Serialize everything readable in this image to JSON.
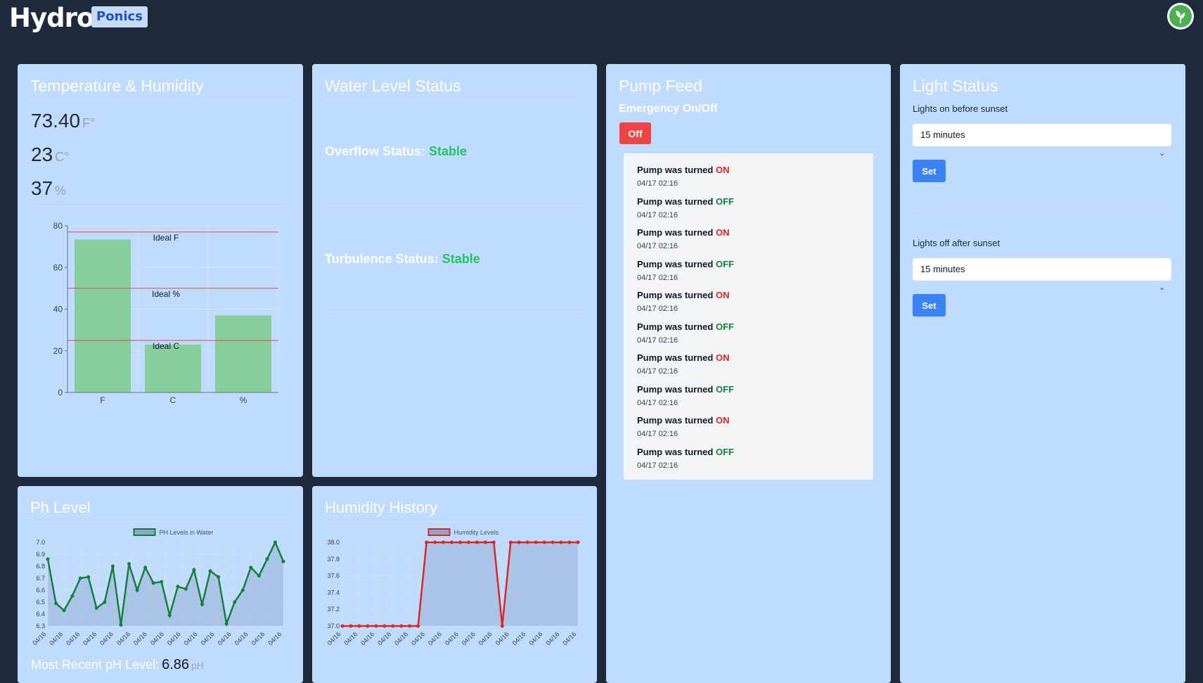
{
  "brand": {
    "title": "Hydro",
    "badge": "Ponics"
  },
  "avatar": {
    "icon": "leaf-icon"
  },
  "temperature_card": {
    "title": "Temperature & Humidity",
    "fahrenheit": {
      "value": "73.40",
      "unit": "F°"
    },
    "celsius": {
      "value": "23",
      "unit": "C°"
    },
    "humidity": {
      "value": "37",
      "unit": "%"
    }
  },
  "water_card": {
    "title": "Water Level Status",
    "overflow_label": "Overflow Status:",
    "overflow_value": "Stable",
    "turbulence_label": "Turbulence Status:",
    "turbulence_value": "Stable"
  },
  "pump_card": {
    "title": "Pump Feed",
    "emergency_label": "Emergency On/Off",
    "off_button": "Off",
    "log": [
      {
        "text": "Pump was turned",
        "state": "ON",
        "time": "04/17 02:16"
      },
      {
        "text": "Pump was turned",
        "state": "OFF",
        "time": "04/17 02:16"
      },
      {
        "text": "Pump was turned",
        "state": "ON",
        "time": "04/17 02:16"
      },
      {
        "text": "Pump was turned",
        "state": "OFF",
        "time": "04/17 02:16"
      },
      {
        "text": "Pump was turned",
        "state": "ON",
        "time": "04/17 02:16"
      },
      {
        "text": "Pump was turned",
        "state": "OFF",
        "time": "04/17 02:16"
      },
      {
        "text": "Pump was turned",
        "state": "ON",
        "time": "04/17 02:16"
      },
      {
        "text": "Pump was turned",
        "state": "OFF",
        "time": "04/17 02:16"
      },
      {
        "text": "Pump was turned",
        "state": "ON",
        "time": "04/17 02:16"
      },
      {
        "text": "Pump was turned",
        "state": "OFF",
        "time": "04/17 02:16"
      }
    ]
  },
  "light_card": {
    "title": "Light Status",
    "before_label": "Lights on before sunset",
    "before_value": "15 minutes",
    "after_label": "Lights off after sunset",
    "after_value": "15 minutes",
    "set_label": "Set"
  },
  "ph_card": {
    "title": "Ph Level",
    "recent_label": "Most Recent pH Level:",
    "recent_value": "6.86",
    "recent_unit": "pH"
  },
  "humidity_card": {
    "title": "Humidity History"
  },
  "colors": {
    "on": "#dc2626",
    "off": "#15803d",
    "status": "#22c55e",
    "danger": "#ef4444",
    "primary": "#3b82f6"
  },
  "chart_data": [
    {
      "type": "bar",
      "categories": [
        "F",
        "C",
        "%"
      ],
      "values": [
        73.4,
        23,
        37
      ],
      "ylim": [
        0,
        80
      ],
      "yticks": [
        0,
        20,
        40,
        60,
        80
      ],
      "reference_lines": [
        {
          "label": "Ideal F",
          "value": 77
        },
        {
          "label": "Ideal %",
          "value": 50
        },
        {
          "label": "Ideal C",
          "value": 25
        }
      ],
      "bar_color": "#86cf9c",
      "grid": true
    },
    {
      "type": "line",
      "series": [
        {
          "name": "PH Levels in Water",
          "values": [
            6.86,
            6.49,
            6.43,
            6.55,
            6.7,
            6.71,
            6.45,
            6.5,
            6.8,
            6.31,
            6.82,
            6.6,
            6.79,
            6.66,
            6.67,
            6.39,
            6.63,
            6.61,
            6.77,
            6.48,
            6.76,
            6.71,
            6.32,
            6.5,
            6.6,
            6.79,
            6.72,
            6.86,
            7.0,
            6.84
          ]
        }
      ],
      "x": [
        "04/16",
        "04/16",
        "04/16",
        "04/16",
        "04/16",
        "04/16",
        "04/16",
        "04/16",
        "04/16",
        "04/16",
        "04/16",
        "04/16",
        "04/16",
        "04/16",
        "04/16",
        "04/16",
        "04/16",
        "04/16",
        "04/16",
        "04/16",
        "04/16",
        "04/16",
        "04/16",
        "04/16",
        "04/16",
        "04/16",
        "04/16",
        "04/16",
        "04/16",
        "04/16"
      ],
      "x_tick_labels": [
        "04/16",
        "04/16",
        "04/16",
        "04/16",
        "04/16",
        "04/16",
        "04/16",
        "04/16",
        "04/16",
        "04/16",
        "04/16",
        "04/16",
        "04/16",
        "04/16",
        "04/16"
      ],
      "ylim": [
        6.3,
        7.0
      ],
      "yticks": [
        6.3,
        6.4,
        6.5,
        6.6,
        6.7,
        6.8,
        6.9,
        7.0
      ],
      "line_color": "#15803d",
      "legend": "top",
      "grid": true
    },
    {
      "type": "line",
      "series": [
        {
          "name": "Humidity Levels",
          "values": [
            37,
            37,
            37,
            37,
            37,
            37,
            37,
            37,
            37,
            37,
            38,
            38,
            38,
            38,
            38,
            38,
            38,
            38,
            38,
            37,
            38,
            38,
            38,
            38,
            38,
            38,
            38,
            38,
            38
          ]
        }
      ],
      "x": [
        "04/16",
        "04/16",
        "04/16",
        "04/16",
        "04/16",
        "04/16",
        "04/16",
        "04/16",
        "04/16",
        "04/16",
        "04/16",
        "04/16",
        "04/16",
        "04/16",
        "04/16",
        "04/16",
        "04/16",
        "04/16",
        "04/16",
        "04/16",
        "04/16",
        "04/16",
        "04/16",
        "04/16",
        "04/16",
        "04/16",
        "04/16",
        "04/16",
        "04/16"
      ],
      "x_tick_labels": [
        "04/16",
        "04/16",
        "04/16",
        "04/16",
        "04/16",
        "04/16",
        "04/16",
        "04/16",
        "04/16",
        "04/16",
        "04/16",
        "04/16",
        "04/16",
        "04/16",
        "04/16"
      ],
      "ylim": [
        37.0,
        38.0
      ],
      "yticks": [
        37.0,
        37.2,
        37.4,
        37.6,
        37.8,
        38.0
      ],
      "line_color": "#dc2626",
      "legend": "top",
      "grid": true
    }
  ]
}
